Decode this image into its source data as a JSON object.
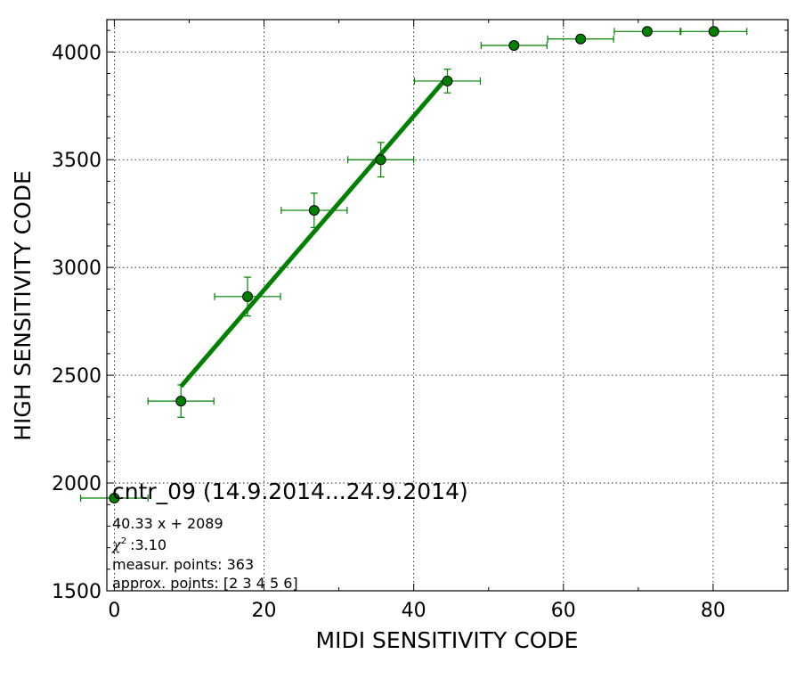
{
  "chart_data": {
    "type": "scatter",
    "title": "cntr_09 (14.9.2014...24.9.2014)",
    "xlabel": "MIDI SENSITIVITY CODE",
    "ylabel": "HIGH SENSITIVITY CODE",
    "xlim": [
      -1,
      90
    ],
    "ylim": [
      1500,
      4150
    ],
    "xticks": [
      0,
      20,
      40,
      60,
      80
    ],
    "yticks": [
      1500,
      2000,
      2500,
      3000,
      3500,
      4000
    ],
    "grid": true,
    "color": "#008000",
    "points": [
      {
        "x": 0,
        "y": 1930,
        "xerr": 4.5,
        "yerr": 0
      },
      {
        "x": 8.9,
        "y": 2380,
        "xerr": 4.4,
        "yerr": 75
      },
      {
        "x": 17.8,
        "y": 2865,
        "xerr": 4.4,
        "yerr": 90
      },
      {
        "x": 26.7,
        "y": 3265,
        "xerr": 4.4,
        "yerr": 80
      },
      {
        "x": 35.6,
        "y": 3500,
        "xerr": 4.4,
        "yerr": 80
      },
      {
        "x": 44.5,
        "y": 3865,
        "xerr": 4.4,
        "yerr": 55
      },
      {
        "x": 53.4,
        "y": 4030,
        "xerr": 4.4,
        "yerr": 0
      },
      {
        "x": 62.3,
        "y": 4060,
        "xerr": 4.4,
        "yerr": 0
      },
      {
        "x": 71.2,
        "y": 4095,
        "xerr": 4.4,
        "yerr": 0
      },
      {
        "x": 80.1,
        "y": 4095,
        "xerr": 4.4,
        "yerr": 0
      }
    ],
    "fit_line": {
      "x": [
        8.9,
        44.5
      ],
      "slope": 40.33,
      "intercept": 2089
    },
    "annotations": [
      "40.33 x + 2089",
      ":3.10",
      "measur. points: 363",
      "approx. points: [2 3 4 5 6]"
    ],
    "chi_symbol": "χ",
    "chi_sup": "2"
  }
}
